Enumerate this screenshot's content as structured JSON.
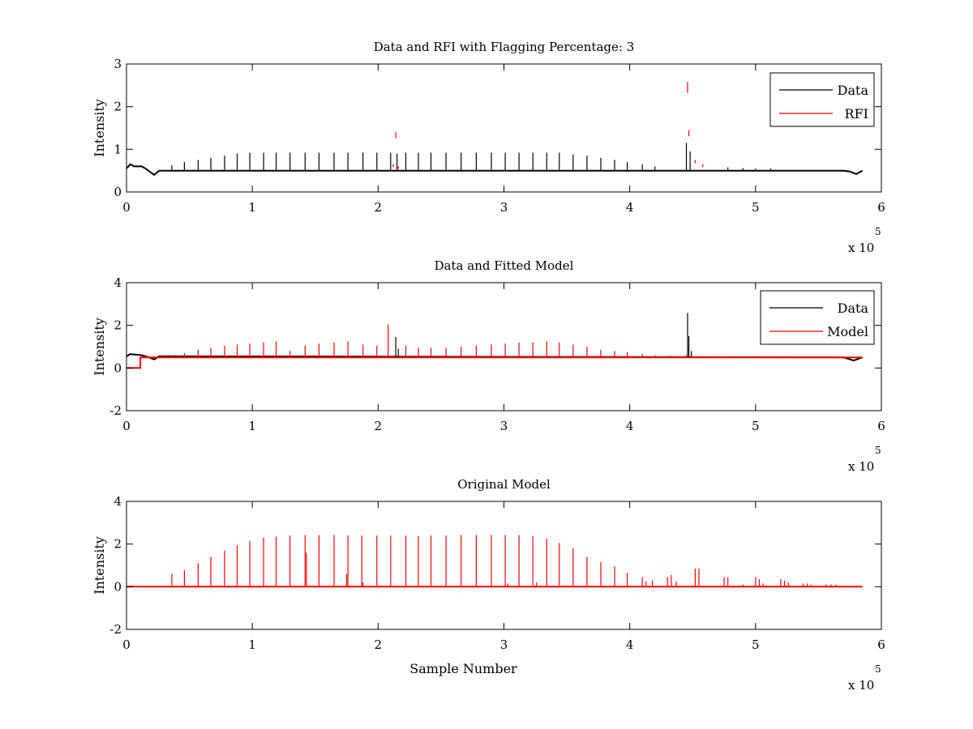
{
  "chart_data": [
    {
      "type": "line",
      "title": "Data and RFI with Flagging Percentage: 3",
      "xlabel": "",
      "ylabel": "Intensity",
      "xlim": [
        0,
        600000
      ],
      "ylim": [
        0,
        3
      ],
      "x_ticks": [
        0,
        1,
        2,
        3,
        4,
        5,
        6
      ],
      "x_exponent_base": "x 10",
      "x_exponent": "5",
      "y_ticks": [
        0,
        1,
        2,
        3
      ],
      "grid": false,
      "legend_position": "top-right",
      "series": [
        {
          "name": "Data",
          "color": "#000000",
          "baseline": 0.5,
          "points": [
            [
              0,
              0.55
            ],
            [
              3000,
              0.65
            ],
            [
              6000,
              0.6
            ],
            [
              12000,
              0.6
            ],
            [
              15000,
              0.55
            ],
            [
              22000,
              0.4
            ],
            [
              26000,
              0.5
            ],
            [
              570000,
              0.5
            ],
            [
              575000,
              0.48
            ],
            [
              580000,
              0.42
            ],
            [
              585000,
              0.5
            ]
          ],
          "spikes": [
            [
              36000,
              0.62
            ],
            [
              46000,
              0.7
            ],
            [
              57000,
              0.75
            ],
            [
              67000,
              0.8
            ],
            [
              78000,
              0.85
            ],
            [
              88000,
              0.9
            ],
            [
              98000,
              0.92
            ],
            [
              109000,
              0.92
            ],
            [
              119000,
              0.92
            ],
            [
              130000,
              0.92
            ],
            [
              142000,
              0.92
            ],
            [
              153000,
              0.92
            ],
            [
              165000,
              0.92
            ],
            [
              176000,
              0.92
            ],
            [
              188000,
              0.92
            ],
            [
              199000,
              0.92
            ],
            [
              210000,
              0.92
            ],
            [
              215000,
              0.9
            ],
            [
              222000,
              0.92
            ],
            [
              232000,
              0.92
            ],
            [
              242000,
              0.92
            ],
            [
              254000,
              0.92
            ],
            [
              266000,
              0.92
            ],
            [
              278000,
              0.92
            ],
            [
              290000,
              0.92
            ],
            [
              301000,
              0.92
            ],
            [
              312000,
              0.92
            ],
            [
              323000,
              0.92
            ],
            [
              334000,
              0.92
            ],
            [
              344000,
              0.92
            ],
            [
              355000,
              0.88
            ],
            [
              366000,
              0.85
            ],
            [
              377000,
              0.8
            ],
            [
              388000,
              0.75
            ],
            [
              398000,
              0.7
            ],
            [
              410000,
              0.65
            ],
            [
              420000,
              0.6
            ],
            [
              445000,
              1.15
            ],
            [
              448000,
              0.95
            ],
            [
              478000,
              0.58
            ],
            [
              490000,
              0.56
            ],
            [
              500000,
              0.55
            ],
            [
              512000,
              0.55
            ]
          ]
        },
        {
          "name": "RFI",
          "color": "#ff0000",
          "baseline": null,
          "points": [],
          "spikes": [
            [
              212000,
              0.65
            ],
            [
              214000,
              1.4
            ],
            [
              216000,
              0.6
            ],
            [
              446000,
              2.58
            ],
            [
              447000,
              1.45
            ],
            [
              452000,
              0.75
            ],
            [
              458000,
              0.65
            ]
          ]
        }
      ]
    },
    {
      "type": "line",
      "title": "Data and Fitted Model",
      "xlabel": "",
      "ylabel": "Intensity",
      "xlim": [
        0,
        600000
      ],
      "ylim": [
        -2,
        4
      ],
      "x_ticks": [
        0,
        1,
        2,
        3,
        4,
        5,
        6
      ],
      "x_exponent_base": "x 10",
      "x_exponent": "5",
      "y_ticks": [
        -2,
        0,
        2,
        4
      ],
      "grid": false,
      "legend_position": "top-right",
      "series": [
        {
          "name": "Data",
          "color": "#000000",
          "baseline": 0.5,
          "points": [
            [
              0,
              0.55
            ],
            [
              3000,
              0.65
            ],
            [
              12000,
              0.6
            ],
            [
              18000,
              0.5
            ],
            [
              22000,
              0.4
            ],
            [
              26000,
              0.55
            ],
            [
              570000,
              0.5
            ],
            [
              578000,
              0.35
            ],
            [
              585000,
              0.5
            ]
          ],
          "spikes": [
            [
              214000,
              1.45
            ],
            [
              216000,
              0.9
            ],
            [
              446000,
              2.58
            ],
            [
              447000,
              1.5
            ],
            [
              449000,
              0.8
            ]
          ]
        },
        {
          "name": "Model",
          "color": "#ff0000",
          "baseline": 0.5,
          "points": [
            [
              0,
              0
            ],
            [
              11000,
              0
            ],
            [
              11000,
              0.5
            ],
            [
              585000,
              0.5
            ]
          ],
          "spikes": [
            [
              36000,
              0.6
            ],
            [
              46000,
              0.7
            ],
            [
              57000,
              0.85
            ],
            [
              67000,
              0.95
            ],
            [
              78000,
              1.05
            ],
            [
              88000,
              1.1
            ],
            [
              98000,
              1.15
            ],
            [
              109000,
              1.2
            ],
            [
              119000,
              1.25
            ],
            [
              130000,
              0.8
            ],
            [
              142000,
              1.05
            ],
            [
              153000,
              1.15
            ],
            [
              165000,
              1.2
            ],
            [
              176000,
              1.25
            ],
            [
              188000,
              1.1
            ],
            [
              199000,
              1.05
            ],
            [
              208000,
              2.05
            ],
            [
              222000,
              1.05
            ],
            [
              232000,
              0.95
            ],
            [
              242000,
              0.95
            ],
            [
              254000,
              0.95
            ],
            [
              266000,
              1.0
            ],
            [
              278000,
              1.05
            ],
            [
              290000,
              1.1
            ],
            [
              301000,
              1.15
            ],
            [
              312000,
              1.2
            ],
            [
              323000,
              1.2
            ],
            [
              334000,
              1.25
            ],
            [
              344000,
              1.2
            ],
            [
              355000,
              1.1
            ],
            [
              366000,
              1.0
            ],
            [
              377000,
              0.85
            ],
            [
              388000,
              0.8
            ],
            [
              398000,
              0.75
            ],
            [
              410000,
              0.65
            ],
            [
              420000,
              0.6
            ],
            [
              432000,
              0.58
            ],
            [
              445000,
              0.6
            ],
            [
              480000,
              0.55
            ],
            [
              500000,
              0.55
            ],
            [
              520000,
              0.55
            ],
            [
              540000,
              0.52
            ]
          ]
        }
      ]
    },
    {
      "type": "line",
      "title": "Original Model",
      "xlabel": "Sample Number",
      "ylabel": "Intensity",
      "xlim": [
        0,
        600000
      ],
      "ylim": [
        -2,
        4
      ],
      "x_ticks": [
        0,
        1,
        2,
        3,
        4,
        5,
        6
      ],
      "x_exponent_base": "x 10",
      "x_exponent": "5",
      "y_ticks": [
        -2,
        0,
        2,
        4
      ],
      "grid": false,
      "legend_position": "none",
      "series": [
        {
          "name": "",
          "color": "#ff0000",
          "baseline": 0,
          "points": [
            [
              0,
              0
            ],
            [
              585000,
              0
            ]
          ],
          "spikes": [
            [
              36000,
              0.6
            ],
            [
              46000,
              0.78
            ],
            [
              57000,
              1.1
            ],
            [
              67000,
              1.4
            ],
            [
              78000,
              1.7
            ],
            [
              88000,
              1.95
            ],
            [
              98000,
              2.15
            ],
            [
              109000,
              2.3
            ],
            [
              119000,
              2.35
            ],
            [
              130000,
              2.4
            ],
            [
              142000,
              2.42
            ],
            [
              143000,
              1.6
            ],
            [
              153000,
              2.42
            ],
            [
              165000,
              2.42
            ],
            [
              176000,
              2.4
            ],
            [
              175000,
              0.6
            ],
            [
              187000,
              2.4
            ],
            [
              188000,
              0.2
            ],
            [
              199000,
              2.4
            ],
            [
              210000,
              2.4
            ],
            [
              222000,
              2.4
            ],
            [
              232000,
              2.38
            ],
            [
              242000,
              2.4
            ],
            [
              254000,
              2.4
            ],
            [
              266000,
              2.42
            ],
            [
              278000,
              2.42
            ],
            [
              290000,
              2.42
            ],
            [
              301000,
              2.42
            ],
            [
              303000,
              0.15
            ],
            [
              312000,
              2.42
            ],
            [
              323000,
              2.38
            ],
            [
              326000,
              0.2
            ],
            [
              334000,
              2.25
            ],
            [
              344000,
              2.05
            ],
            [
              355000,
              1.8
            ],
            [
              366000,
              1.4
            ],
            [
              377000,
              1.15
            ],
            [
              388000,
              0.95
            ],
            [
              398000,
              0.65
            ],
            [
              410000,
              0.45
            ],
            [
              413000,
              0.25
            ],
            [
              418000,
              0.3
            ],
            [
              430000,
              0.45
            ],
            [
              433000,
              0.55
            ],
            [
              437000,
              0.25
            ],
            [
              452000,
              0.85
            ],
            [
              455000,
              0.85
            ],
            [
              475000,
              0.45
            ],
            [
              478000,
              0.45
            ],
            [
              490000,
              0.1
            ],
            [
              500000,
              0.45
            ],
            [
              503000,
              0.35
            ],
            [
              506000,
              0.15
            ],
            [
              520000,
              0.35
            ],
            [
              523000,
              0.3
            ],
            [
              526000,
              0.2
            ],
            [
              538000,
              0.15
            ],
            [
              541000,
              0.15
            ],
            [
              544000,
              0.1
            ],
            [
              556000,
              0.1
            ],
            [
              560000,
              0.1
            ],
            [
              564000,
              0.1
            ]
          ]
        }
      ]
    }
  ]
}
